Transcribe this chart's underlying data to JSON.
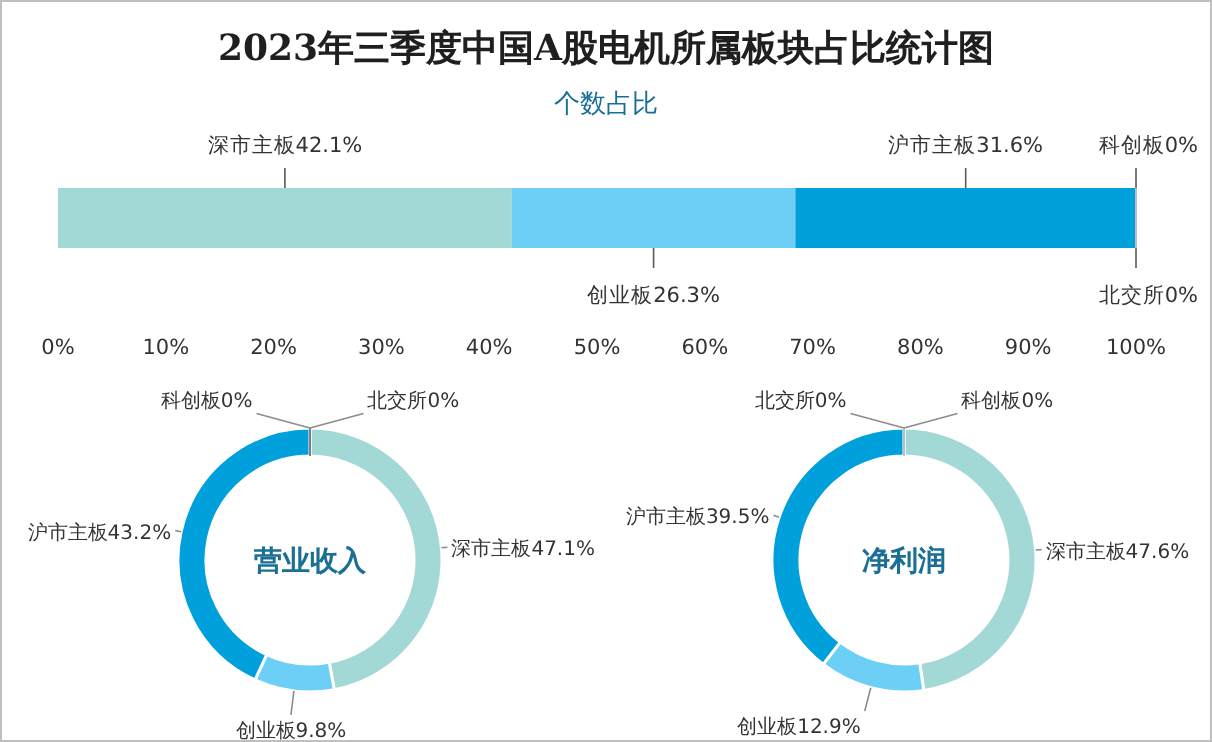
{
  "chart_data": [
    {
      "type": "bar",
      "orientation": "horizontal",
      "stacked": true,
      "title": "2023年三季度中国A股电机所属板块占比统计图",
      "subtitle": "个数占比",
      "categories": [
        null
      ],
      "xlim": [
        0,
        100
      ],
      "xticks": [
        {
          "value": 0,
          "label": "0%"
        },
        {
          "value": 10,
          "label": "10%"
        },
        {
          "value": 20,
          "label": "20%"
        },
        {
          "value": 30,
          "label": "30%"
        },
        {
          "value": 40,
          "label": "40%"
        },
        {
          "value": 50,
          "label": "50%"
        },
        {
          "value": 60,
          "label": "60%"
        },
        {
          "value": 70,
          "label": "70%"
        },
        {
          "value": 80,
          "label": "80%"
        },
        {
          "value": 90,
          "label": "90%"
        },
        {
          "value": 100,
          "label": "100%"
        }
      ],
      "series": [
        {
          "name": "深市主板",
          "color": "#a2d9d6",
          "values": [
            42.1
          ],
          "value_labels": [
            "42.1%"
          ]
        },
        {
          "name": "创业板",
          "color": "#6dcff6",
          "values": [
            26.3
          ],
          "value_labels": [
            "26.3%"
          ]
        },
        {
          "name": "沪市主板",
          "color": "#00a0dc",
          "values": [
            31.6
          ],
          "value_labels": [
            "31.6%"
          ]
        },
        {
          "name": "北交所",
          "color": "#7f7f7f",
          "values": [
            0
          ],
          "value_labels": [
            "0%"
          ]
        },
        {
          "name": "科创板",
          "color": "#bfbfbf",
          "values": [
            0
          ],
          "value_labels": [
            "0%"
          ]
        }
      ]
    },
    {
      "type": "donut",
      "title": "营业收入",
      "categories": [
        "深市主板",
        "创业板",
        "沪市主板",
        "科创板",
        "北交所"
      ],
      "values": [
        47.1,
        9.8,
        43.2,
        0,
        0
      ],
      "colors": [
        "#a2d9d6",
        "#6dcff6",
        "#00a0dc",
        "#bfbfbf",
        "#7f7f7f"
      ],
      "value_labels": [
        "47.1%",
        "9.8%",
        "43.2%",
        "0%",
        "0%"
      ]
    },
    {
      "type": "donut",
      "title": "净利润",
      "categories": [
        "深市主板",
        "创业板",
        "沪市主板",
        "北交所",
        "科创板"
      ],
      "values": [
        47.6,
        12.9,
        39.5,
        0,
        0
      ],
      "colors": [
        "#a2d9d6",
        "#6dcff6",
        "#00a0dc",
        "#7f7f7f",
        "#bfbfbf"
      ],
      "value_labels": [
        "47.6%",
        "12.9%",
        "39.5%",
        "0%",
        "0%"
      ]
    }
  ]
}
